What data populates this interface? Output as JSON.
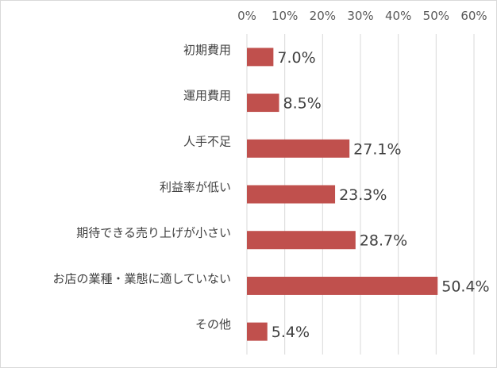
{
  "chart_data": {
    "type": "bar",
    "orientation": "horizontal",
    "categories": [
      "初期費用",
      "運用費用",
      "人手不足",
      "利益率が低い",
      "期待できる売り上げが小さい",
      "お店の業種・業態に適していない",
      "その他"
    ],
    "values": [
      7.0,
      8.5,
      27.1,
      23.3,
      28.7,
      50.4,
      5.4
    ],
    "data_labels": [
      "7.0%",
      "8.5%",
      "27.1%",
      "23.3%",
      "28.7%",
      "50.4%",
      "5.4%"
    ],
    "tick_labels": [
      "0%",
      "10%",
      "20%",
      "30%",
      "40%",
      "50%",
      "60%"
    ],
    "xlim": [
      0,
      60
    ],
    "ticks": [
      0,
      10,
      20,
      30,
      40,
      50,
      60
    ],
    "axis_position": "top",
    "grid": true,
    "bar_color": "#c0504d",
    "title": "",
    "xlabel": "",
    "ylabel": ""
  }
}
